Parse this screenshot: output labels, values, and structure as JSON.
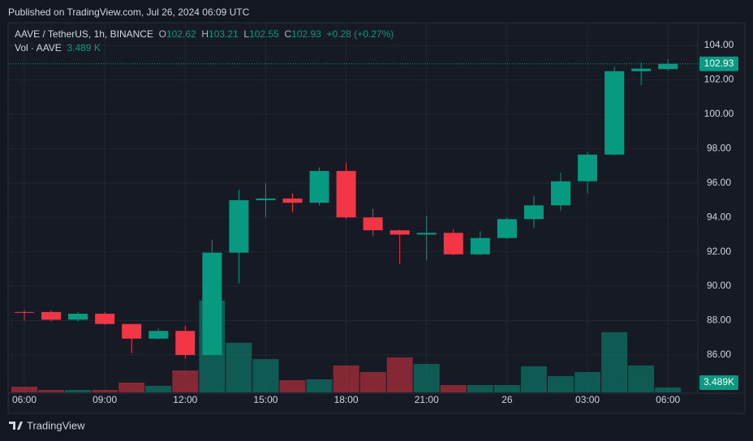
{
  "published": "Published on TradingView.com, Jul 26, 2024 06:09 UTC",
  "brand": "TradingView",
  "chart_data": {
    "type": "candlestick",
    "symbol": "AAVE / TetherUS, 1h, BINANCE",
    "legend": {
      "o_label": "O",
      "o": "102.62",
      "h_label": "H",
      "h": "103.21",
      "l_label": "L",
      "l": "102.55",
      "c_label": "C",
      "c": "102.93",
      "change": "+0.28 (+0.27%)",
      "vol_label": "Vol · AAVE",
      "vol": "3.489 K"
    },
    "categories": [
      "06:00",
      null,
      null,
      "09:00",
      null,
      null,
      "12:00",
      null,
      null,
      "15:00",
      null,
      null,
      "18:00",
      null,
      null,
      "21:00",
      null,
      null,
      "26",
      null,
      null,
      "03:00",
      null,
      null,
      "06:00"
    ],
    "open": [
      88.5,
      88.5,
      88.05,
      88.4,
      87.8,
      86.95,
      87.4,
      86.0,
      91.95,
      95.0,
      95.1,
      94.85,
      96.7,
      94.0,
      93.25,
      93.0,
      93.1,
      91.85,
      92.8,
      93.9,
      94.7,
      96.1,
      97.65,
      102.5,
      102.62
    ],
    "high": [
      88.6,
      88.6,
      88.5,
      88.5,
      87.8,
      87.55,
      87.7,
      92.7,
      95.6,
      96.0,
      95.4,
      96.9,
      97.2,
      94.5,
      93.3,
      94.1,
      93.3,
      93.2,
      94.0,
      95.25,
      96.6,
      97.8,
      102.75,
      103.0,
      103.21
    ],
    "low": [
      88.0,
      87.95,
      87.95,
      87.75,
      86.1,
      86.9,
      85.8,
      86.0,
      90.15,
      94.0,
      94.3,
      94.7,
      93.9,
      92.9,
      91.3,
      91.5,
      91.8,
      91.8,
      92.75,
      93.4,
      94.4,
      95.4,
      97.6,
      101.7,
      102.55
    ],
    "close": [
      88.45,
      88.05,
      88.4,
      87.8,
      86.95,
      87.4,
      86.0,
      91.95,
      95.0,
      95.1,
      94.85,
      96.7,
      94.0,
      93.25,
      93.0,
      93.1,
      91.85,
      92.8,
      93.9,
      94.7,
      96.1,
      97.65,
      102.5,
      102.65,
      102.93
    ],
    "volume": [
      4070,
      1745,
      1745,
      1745,
      6980,
      4650,
      15700,
      65700,
      35470,
      23840,
      8720,
      9300,
      19190,
      14540,
      25000,
      20350,
      5230,
      5230,
      5230,
      18610,
      11630,
      14540,
      43030,
      19190,
      3489
    ],
    "last_price_label": "102.93",
    "last_volume_label": "3.489K",
    "up_color": "#089981",
    "down_color": "#f23645",
    "ylim": [
      83.78,
      105.32
    ],
    "yticks": [
      {
        "value": 86,
        "label": "86.00"
      },
      {
        "value": 88,
        "label": "88.00"
      },
      {
        "value": 90,
        "label": "90.00"
      },
      {
        "value": 92,
        "label": "92.00"
      },
      {
        "value": 94,
        "label": "94.00"
      },
      {
        "value": 96,
        "label": "96.00"
      },
      {
        "value": 98,
        "label": "98.00"
      },
      {
        "value": 100,
        "label": "100.00"
      },
      {
        "value": 102,
        "label": "102.00"
      },
      {
        "value": 104,
        "label": "104.00"
      }
    ],
    "volume_lim": [
      0,
      80000
    ],
    "grid": true
  }
}
